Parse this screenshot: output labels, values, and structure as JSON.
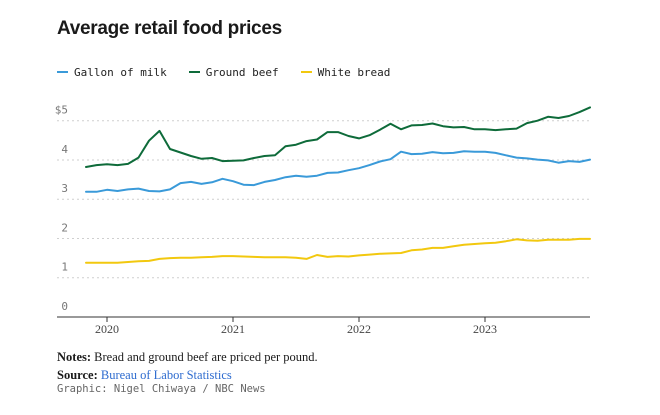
{
  "title": "Average retail food prices",
  "legend": [
    {
      "name": "Gallon of milk",
      "color": "#3a9ad9"
    },
    {
      "name": "Ground beef",
      "color": "#0e6b3a"
    },
    {
      "name": "White bread",
      "color": "#f2c80f"
    }
  ],
  "notes": {
    "notes_label": "Notes:",
    "notes_text": "Bread and ground beef are priced per pound.",
    "source_label": "Source:",
    "source_text": "Bureau of Labor Statistics",
    "credit": "Graphic: Nigel Chiwaya / NBC News"
  },
  "chart_data": {
    "type": "line",
    "title": "Average retail food prices",
    "xlabel": "",
    "ylabel": "",
    "xlim": [
      "2019-11",
      "2023-11"
    ],
    "ylim": [
      0,
      5.4
    ],
    "yticks": [
      0,
      1,
      2,
      3,
      4,
      5
    ],
    "ytick_labels": [
      "0",
      "1",
      "2",
      "3",
      "4",
      "$5"
    ],
    "xticks": [
      "2020-01",
      "2021-01",
      "2022-01",
      "2023-01"
    ],
    "xtick_labels": [
      "2020",
      "2021",
      "2022",
      "2023"
    ],
    "grid": "horizontal dashed",
    "legend_position": "top-left",
    "x": [
      "2019-11",
      "2019-12",
      "2020-01",
      "2020-02",
      "2020-03",
      "2020-04",
      "2020-05",
      "2020-06",
      "2020-07",
      "2020-08",
      "2020-09",
      "2020-10",
      "2020-11",
      "2020-12",
      "2021-01",
      "2021-02",
      "2021-03",
      "2021-04",
      "2021-05",
      "2021-06",
      "2021-07",
      "2021-08",
      "2021-09",
      "2021-10",
      "2021-11",
      "2021-12",
      "2022-01",
      "2022-02",
      "2022-03",
      "2022-04",
      "2022-05",
      "2022-06",
      "2022-07",
      "2022-08",
      "2022-09",
      "2022-10",
      "2022-11",
      "2022-12",
      "2023-01",
      "2023-02",
      "2023-03",
      "2023-04",
      "2023-05",
      "2023-06",
      "2023-07",
      "2023-08",
      "2023-09",
      "2023-10",
      "2023-11"
    ],
    "series": [
      {
        "name": "Gallon of milk",
        "color": "#3a9ad9",
        "values": [
          3.19,
          3.19,
          3.24,
          3.21,
          3.25,
          3.27,
          3.21,
          3.2,
          3.25,
          3.41,
          3.44,
          3.39,
          3.43,
          3.52,
          3.46,
          3.37,
          3.36,
          3.44,
          3.49,
          3.56,
          3.6,
          3.57,
          3.6,
          3.67,
          3.68,
          3.74,
          3.79,
          3.87,
          3.96,
          4.02,
          4.21,
          4.15,
          4.16,
          4.2,
          4.17,
          4.18,
          4.22,
          4.21,
          4.21,
          4.18,
          4.12,
          4.06,
          4.04,
          4.01,
          3.99,
          3.93,
          3.97,
          3.95,
          4.01
        ]
      },
      {
        "name": "Ground beef",
        "color": "#0e6b3a",
        "values": [
          3.82,
          3.87,
          3.89,
          3.87,
          3.9,
          4.06,
          4.49,
          4.74,
          4.28,
          4.19,
          4.1,
          4.03,
          4.05,
          3.97,
          3.98,
          3.99,
          4.05,
          4.1,
          4.12,
          4.35,
          4.39,
          4.48,
          4.52,
          4.71,
          4.71,
          4.61,
          4.55,
          4.63,
          4.77,
          4.92,
          4.78,
          4.88,
          4.89,
          4.93,
          4.86,
          4.83,
          4.84,
          4.78,
          4.78,
          4.76,
          4.78,
          4.8,
          4.94,
          5.0,
          5.1,
          5.07,
          5.12,
          5.22,
          5.34
        ]
      },
      {
        "name": "White bread",
        "color": "#f2c80f",
        "values": [
          1.38,
          1.38,
          1.38,
          1.38,
          1.4,
          1.42,
          1.43,
          1.48,
          1.5,
          1.51,
          1.51,
          1.52,
          1.53,
          1.55,
          1.55,
          1.54,
          1.53,
          1.52,
          1.52,
          1.52,
          1.51,
          1.48,
          1.58,
          1.53,
          1.55,
          1.54,
          1.57,
          1.59,
          1.61,
          1.62,
          1.63,
          1.7,
          1.72,
          1.76,
          1.76,
          1.8,
          1.84,
          1.86,
          1.88,
          1.89,
          1.93,
          1.98,
          1.95,
          1.94,
          1.97,
          1.97,
          1.97,
          1.99,
          1.99
        ]
      }
    ]
  }
}
